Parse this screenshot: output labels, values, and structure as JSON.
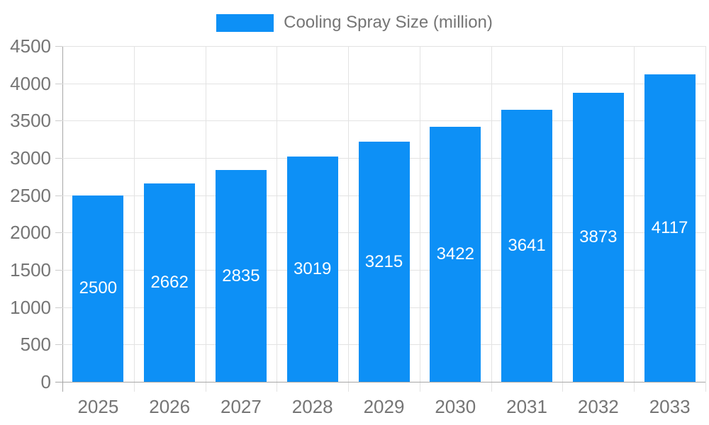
{
  "chart_data": {
    "type": "bar",
    "legend": "Cooling Spray Size (million)",
    "legend_position": "top",
    "categories": [
      "2025",
      "2026",
      "2027",
      "2028",
      "2029",
      "2030",
      "2031",
      "2032",
      "2033"
    ],
    "values": [
      2500,
      2662,
      2835,
      3019,
      3215,
      3422,
      3641,
      3873,
      4117
    ],
    "title": "",
    "xlabel": "",
    "ylabel": "",
    "ylim": [
      0,
      4500
    ],
    "ytick_step": 500,
    "grid": true,
    "bar_color": "#0d90f6",
    "bar_label_color": "#ffffff",
    "axis_text_color": "#757575",
    "gridline_color": "#e3e3e3",
    "axis_line_color": "#a6a6a6"
  }
}
